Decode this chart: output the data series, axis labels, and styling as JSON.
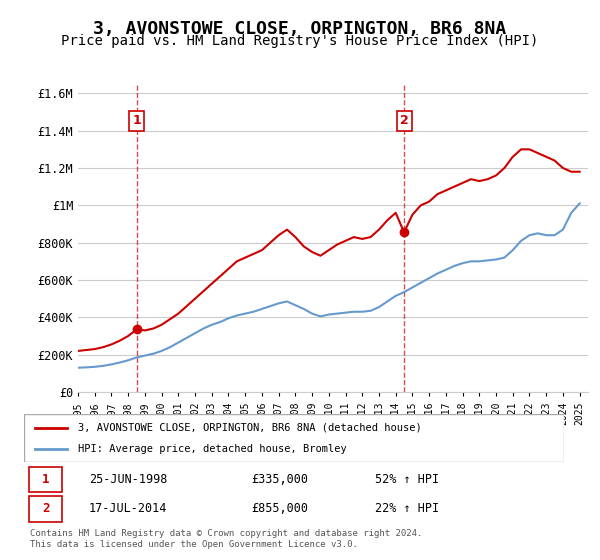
{
  "title": "3, AVONSTOWE CLOSE, ORPINGTON, BR6 8NA",
  "subtitle": "Price paid vs. HM Land Registry's House Price Index (HPI)",
  "title_fontsize": 13,
  "subtitle_fontsize": 10,
  "red_label": "3, AVONSTOWE CLOSE, ORPINGTON, BR6 8NA (detached house)",
  "blue_label": "HPI: Average price, detached house, Bromley",
  "sale1_label": "1",
  "sale1_date": "25-JUN-1998",
  "sale1_price": "£335,000",
  "sale1_hpi": "52% ↑ HPI",
  "sale2_label": "2",
  "sale2_date": "17-JUL-2014",
  "sale2_price": "£855,000",
  "sale2_hpi": "22% ↑ HPI",
  "footer": "Contains HM Land Registry data © Crown copyright and database right 2024.\nThis data is licensed under the Open Government Licence v3.0.",
  "ylim": [
    0,
    1650000
  ],
  "yticks": [
    0,
    200000,
    400000,
    600000,
    800000,
    1000000,
    1200000,
    1400000,
    1600000
  ],
  "ytick_labels": [
    "£0",
    "£200K",
    "£400K",
    "£600K",
    "£800K",
    "£1M",
    "£1.2M",
    "£1.4M",
    "£1.6M"
  ],
  "red_color": "#cc0000",
  "blue_color": "#6699cc",
  "bg_color": "#ffffff",
  "grid_color": "#cccccc",
  "sale1_year": 1998.5,
  "sale1_value": 335000,
  "sale2_year": 2014.5,
  "sale2_value": 855000,
  "red_x": [
    1995,
    1995.5,
    1996,
    1996.5,
    1997,
    1997.5,
    1998,
    1998.5,
    1999,
    1999.5,
    2000,
    2000.5,
    2001,
    2001.5,
    2002,
    2002.5,
    2003,
    2003.5,
    2004,
    2004.5,
    2005,
    2005.5,
    2006,
    2006.5,
    2007,
    2007.5,
    2008,
    2008.5,
    2009,
    2009.5,
    2010,
    2010.5,
    2011,
    2011.5,
    2012,
    2012.5,
    2013,
    2013.5,
    2014,
    2014.5,
    2015,
    2015.5,
    2016,
    2016.5,
    2017,
    2017.5,
    2018,
    2018.5,
    2019,
    2019.5,
    2020,
    2020.5,
    2021,
    2021.5,
    2022,
    2022.5,
    2023,
    2023.5,
    2024,
    2024.5,
    2025
  ],
  "red_y": [
    220000,
    225000,
    230000,
    240000,
    255000,
    275000,
    300000,
    335000,
    330000,
    340000,
    360000,
    390000,
    420000,
    460000,
    500000,
    540000,
    580000,
    620000,
    660000,
    700000,
    720000,
    740000,
    760000,
    800000,
    840000,
    870000,
    830000,
    780000,
    750000,
    730000,
    760000,
    790000,
    810000,
    830000,
    820000,
    830000,
    870000,
    920000,
    960000,
    855000,
    950000,
    1000000,
    1020000,
    1060000,
    1080000,
    1100000,
    1120000,
    1140000,
    1130000,
    1140000,
    1160000,
    1200000,
    1260000,
    1300000,
    1300000,
    1280000,
    1260000,
    1240000,
    1200000,
    1180000,
    1180000
  ],
  "blue_x": [
    1995,
    1995.5,
    1996,
    1996.5,
    1997,
    1997.5,
    1998,
    1998.5,
    1999,
    1999.5,
    2000,
    2000.5,
    2001,
    2001.5,
    2002,
    2002.5,
    2003,
    2003.5,
    2004,
    2004.5,
    2005,
    2005.5,
    2006,
    2006.5,
    2007,
    2007.5,
    2008,
    2008.5,
    2009,
    2009.5,
    2010,
    2010.5,
    2011,
    2011.5,
    2012,
    2012.5,
    2013,
    2013.5,
    2014,
    2014.5,
    2015,
    2015.5,
    2016,
    2016.5,
    2017,
    2017.5,
    2018,
    2018.5,
    2019,
    2019.5,
    2020,
    2020.5,
    2021,
    2021.5,
    2022,
    2022.5,
    2023,
    2023.5,
    2024,
    2024.5,
    2025
  ],
  "blue_y": [
    130000,
    132000,
    135000,
    140000,
    148000,
    158000,
    170000,
    185000,
    195000,
    205000,
    220000,
    240000,
    265000,
    290000,
    315000,
    340000,
    360000,
    375000,
    395000,
    410000,
    420000,
    430000,
    445000,
    460000,
    475000,
    485000,
    465000,
    445000,
    420000,
    405000,
    415000,
    420000,
    425000,
    430000,
    430000,
    435000,
    455000,
    485000,
    515000,
    535000,
    560000,
    585000,
    610000,
    635000,
    655000,
    675000,
    690000,
    700000,
    700000,
    705000,
    710000,
    720000,
    760000,
    810000,
    840000,
    850000,
    840000,
    840000,
    870000,
    960000,
    1010000
  ],
  "xmin": 1995,
  "xmax": 2025.5
}
